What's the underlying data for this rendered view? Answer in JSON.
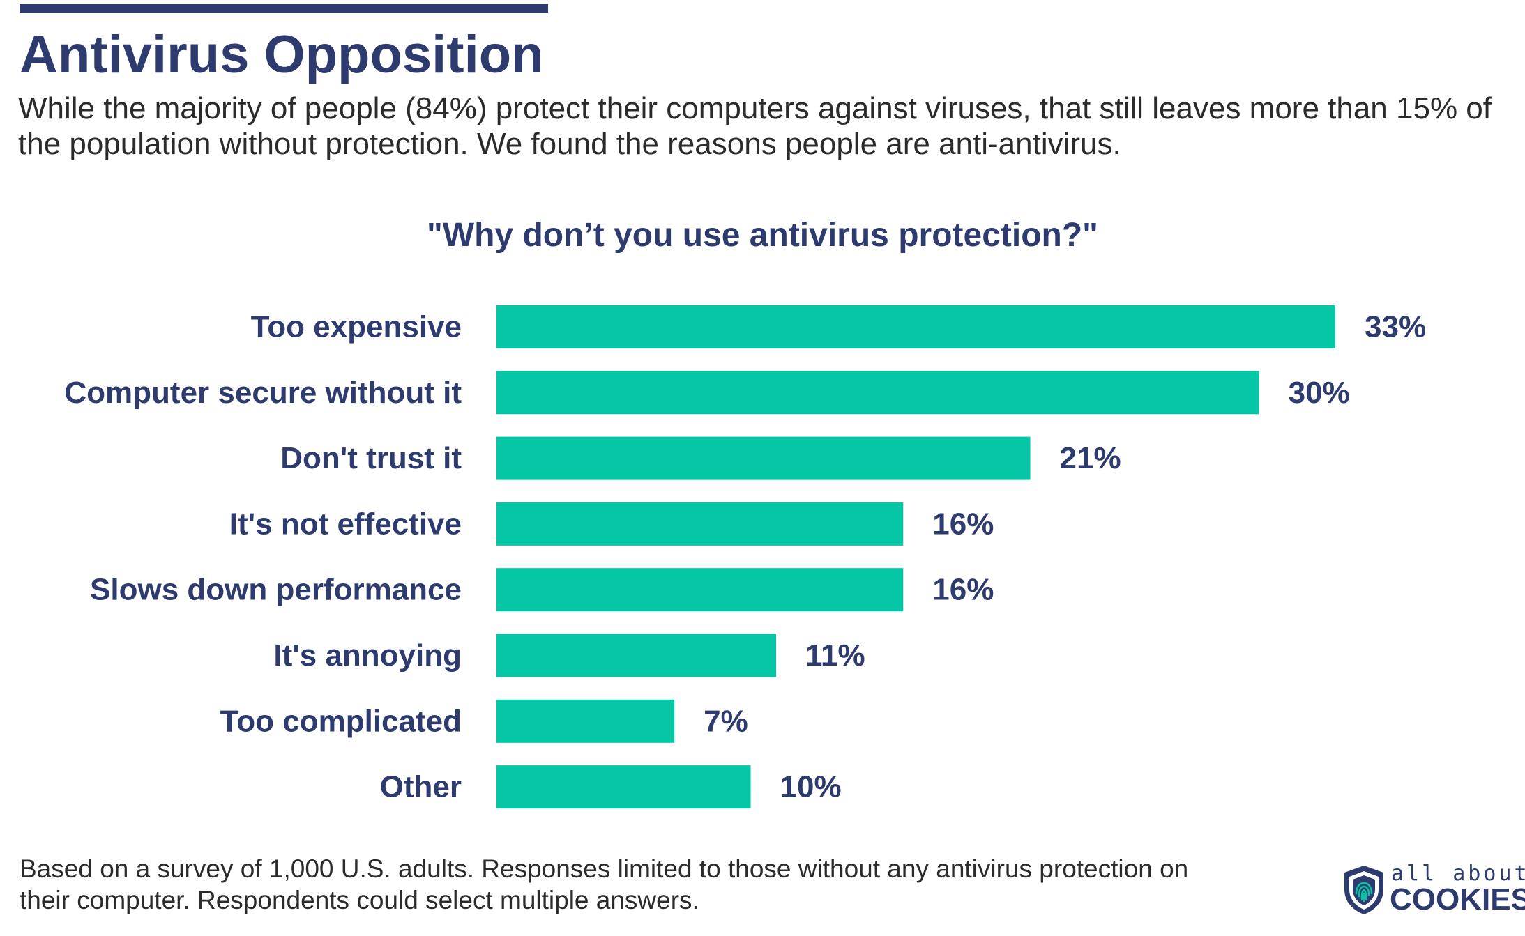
{
  "header": {
    "title": "Antivirus Opposition",
    "subtitle": "While the majority of people (84%) protect their computers against viruses, that still leaves more than 15% of the population without protection. We found the reasons people are anti-antivirus."
  },
  "chart_data": {
    "type": "bar",
    "orientation": "horizontal",
    "title": "\"Why don’t you use antivirus protection?\"",
    "categories": [
      "Too expensive",
      "Computer secure without it",
      "Don't trust it",
      "It's not effective",
      "Slows down performance",
      "It's annoying",
      "Too complicated",
      "Other"
    ],
    "values": [
      33,
      30,
      21,
      16,
      16,
      11,
      7,
      10
    ],
    "value_labels": [
      "33%",
      "30%",
      "21%",
      "16%",
      "16%",
      "11%",
      "7%",
      "10%"
    ],
    "unit": "%",
    "xlim": [
      0,
      33
    ],
    "grid": false,
    "legend": "none",
    "bar_color": "#05c7a5",
    "label_color": "#2d3b6e"
  },
  "footnote": "Based on a survey of 1,000 U.S. adults. Responses limited to those without any antivirus protection on their computer. Respondents could select multiple answers.",
  "logo": {
    "line1": "all about",
    "line2": "COOKIES",
    "icon": "shield-fingerprint-icon"
  },
  "colors": {
    "navy": "#2d3b6e",
    "teal": "#05c7a5",
    "text": "#2b2b2b"
  }
}
